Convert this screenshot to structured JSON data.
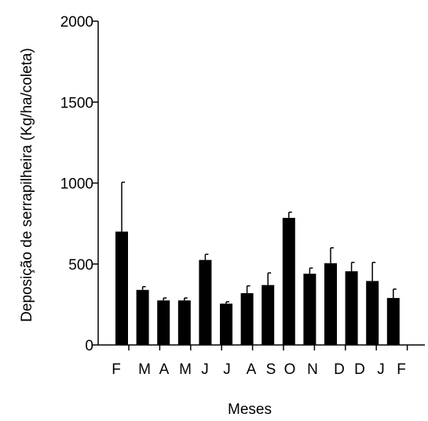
{
  "chart_data": {
    "type": "bar",
    "xlabel": "Meses",
    "ylabel": "Deposição de serrapilheira (Kg/ha/coleta)",
    "ylim": [
      0,
      2000
    ],
    "yticks": [
      "0",
      "500",
      "1000",
      "1500",
      "2000"
    ],
    "grid": false,
    "bar_color": "#000000",
    "x_tick_labels": [
      "F",
      "M",
      "A",
      "M",
      "J",
      "J",
      "A",
      "S",
      "O",
      "N",
      "D",
      "D",
      "J",
      "F"
    ],
    "bars": [
      {
        "value": 700,
        "error": 305
      },
      {
        "value": 340,
        "error": 20
      },
      {
        "value": 275,
        "error": 15
      },
      {
        "value": 275,
        "error": 15
      },
      {
        "value": 525,
        "error": 35
      },
      {
        "value": 255,
        "error": 12
      },
      {
        "value": 320,
        "error": 45
      },
      {
        "value": 370,
        "error": 75
      },
      {
        "value": 785,
        "error": 35
      },
      {
        "value": 440,
        "error": 35
      },
      {
        "value": 505,
        "error": 95
      },
      {
        "value": 455,
        "error": 55
      },
      {
        "value": 395,
        "error": 115
      },
      {
        "value": 290,
        "error": 55
      }
    ]
  }
}
